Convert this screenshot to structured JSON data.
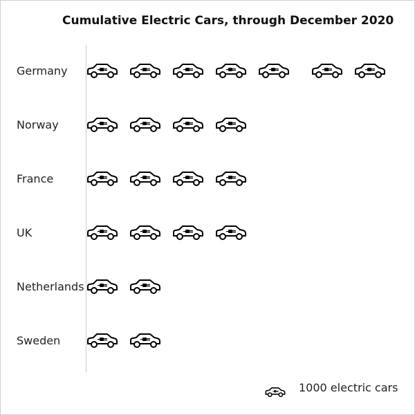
{
  "chart_data": {
    "type": "pictograph",
    "title": "Cumulative Electric Cars, through December 2020",
    "categories": [
      "Germany",
      "Norway",
      "France",
      "UK",
      "Netherlands",
      "Sweden"
    ],
    "values": [
      7000,
      4000,
      4000,
      4000,
      2000,
      2000
    ],
    "unit_per_icon": 1000,
    "icon": "electric-car-icon",
    "legend": {
      "label": "1000 electric cars",
      "position": "bottom-right"
    },
    "colors": {
      "icon_stroke": "#000000",
      "axis": "#c8c8c8"
    }
  }
}
